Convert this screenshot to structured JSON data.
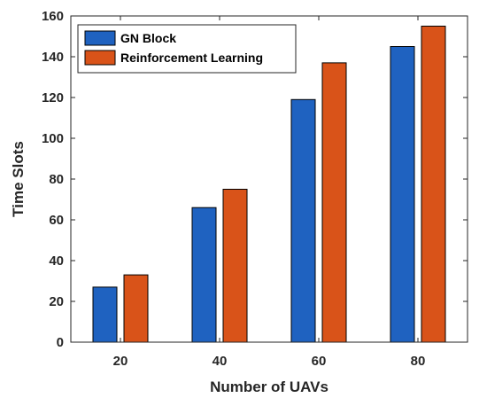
{
  "chart_data": {
    "type": "bar",
    "title": "",
    "xlabel": "Number of UAVs",
    "ylabel": "Time Slots",
    "categories": [
      "20",
      "40",
      "60",
      "80"
    ],
    "ylim": [
      0,
      160
    ],
    "yticks": [
      0,
      20,
      40,
      60,
      80,
      100,
      120,
      140,
      160
    ],
    "grid": false,
    "legend_position": "top-left",
    "series": [
      {
        "name": "GN Block",
        "values": [
          27,
          66,
          119,
          145
        ],
        "color": "#1f62c0"
      },
      {
        "name": "Reinforcement Learning",
        "values": [
          33,
          75,
          137,
          155
        ],
        "color": "#d95319"
      }
    ]
  }
}
